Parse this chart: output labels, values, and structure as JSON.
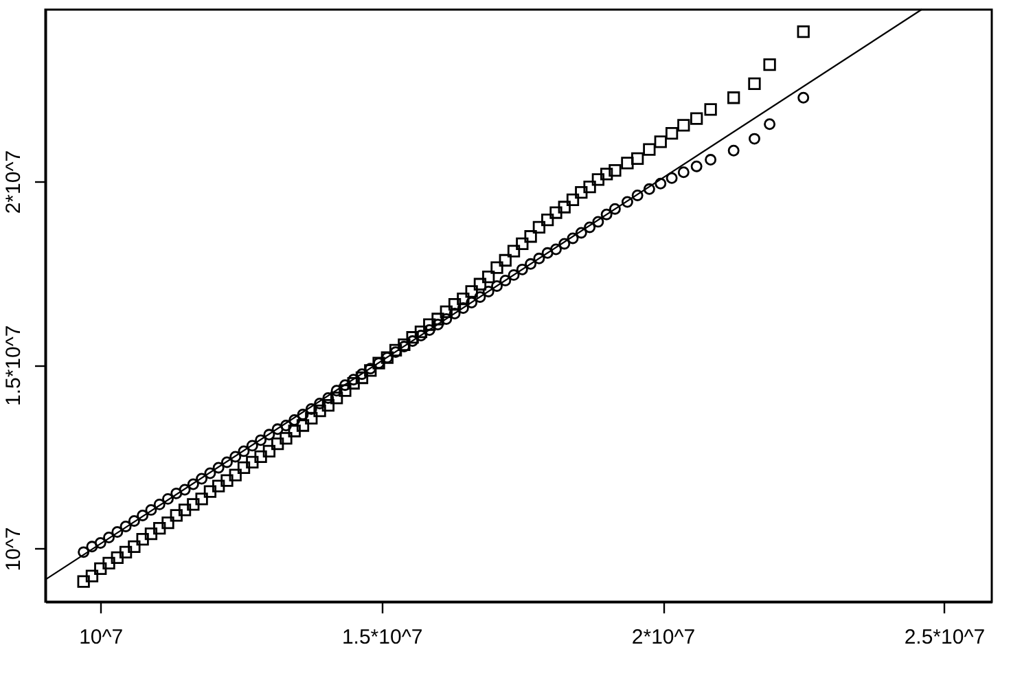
{
  "chart_data": {
    "type": "scatter",
    "x": [
      9700000,
      9850000,
      10000000,
      10150000,
      10300000,
      10450000,
      10600000,
      10750000,
      10900000,
      11050000,
      11200000,
      11350000,
      11500000,
      11650000,
      11800000,
      11950000,
      12100000,
      12250000,
      12400000,
      12550000,
      12700000,
      12850000,
      13000000,
      13150000,
      13300000,
      13450000,
      13600000,
      13750000,
      13900000,
      14050000,
      14200000,
      14350000,
      14500000,
      14650000,
      14800000,
      14950000,
      15100000,
      15250000,
      15400000,
      15550000,
      15700000,
      15850000,
      16000000,
      16150000,
      16300000,
      16450000,
      16600000,
      16750000,
      16900000,
      17050000,
      17200000,
      17350000,
      17500000,
      17650000,
      17800000,
      17950000,
      18100000,
      18250000,
      18400000,
      18550000,
      18700000,
      18850000,
      19000000,
      19150000,
      19370000,
      19550000,
      19760000,
      19960000,
      20160000,
      20370000,
      20600000,
      20850000,
      21260000,
      21630000,
      21900000,
      22500000
    ],
    "series": [
      {
        "color": "#000000",
        "marker": "square",
        "values": [
          9100000,
          9250000,
          9450000,
          9600000,
          9750000,
          9900000,
          10050000,
          10250000,
          10400000,
          10550000,
          10700000,
          10900000,
          11050000,
          11200000,
          11350000,
          11550000,
          11700000,
          11850000,
          12000000,
          12200000,
          12350000,
          12500000,
          12650000,
          12850000,
          13000000,
          13200000,
          13350000,
          13550000,
          13750000,
          13900000,
          14100000,
          14300000,
          14500000,
          14650000,
          14850000,
          15050000,
          15200000,
          15400000,
          15550000,
          15750000,
          15900000,
          16100000,
          16250000,
          16450000,
          16650000,
          16800000,
          17000000,
          17200000,
          17400000,
          17650000,
          17850000,
          18100000,
          18300000,
          18500000,
          18750000,
          18950000,
          19150000,
          19300000,
          19500000,
          19700000,
          19850000,
          20050000,
          20200000,
          20300000,
          20500000,
          20620000,
          20870000,
          21080000,
          21310000,
          21530000,
          21710000,
          21960000,
          22280000,
          22660000,
          23180000,
          24080000
        ]
      },
      {
        "color": "#000000",
        "marker": "circle",
        "values": [
          9900000,
          10050000,
          10150000,
          10300000,
          10450000,
          10600000,
          10750000,
          10900000,
          11050000,
          11200000,
          11350000,
          11500000,
          11600000,
          11750000,
          11900000,
          12050000,
          12200000,
          12350000,
          12500000,
          12650000,
          12800000,
          12950000,
          13100000,
          13250000,
          13350000,
          13500000,
          13650000,
          13800000,
          13950000,
          14100000,
          14300000,
          14450000,
          14600000,
          14750000,
          14900000,
          15050000,
          15200000,
          15350000,
          15500000,
          15650000,
          15800000,
          15950000,
          16100000,
          16250000,
          16400000,
          16550000,
          16700000,
          16850000,
          17000000,
          17150000,
          17300000,
          17450000,
          17600000,
          17750000,
          17900000,
          18050000,
          18150000,
          18300000,
          18450000,
          18600000,
          18750000,
          18900000,
          19100000,
          19250000,
          19440000,
          19620000,
          19790000,
          19940000,
          20090000,
          20250000,
          20410000,
          20590000,
          20840000,
          21160000,
          21560000,
          22280000
        ]
      },
      {
        "type": "line",
        "color": "#000000",
        "line_style": "solid",
        "x": [
          9020000,
          24600000
        ],
        "values": [
          9150000,
          24680000
        ]
      }
    ],
    "xlim": [
      9020000,
      25850000
    ],
    "ylim": [
      8550000,
      24680000
    ],
    "xticks": [
      {
        "value": 10000000,
        "label": "10^7"
      },
      {
        "value": 15000000,
        "label": "1.5*10^7"
      },
      {
        "value": 20000000,
        "label": "2*10^7"
      },
      {
        "value": 25000000,
        "label": "2.5*10^7"
      }
    ],
    "yticks": [
      {
        "value": 10000000,
        "label": "10^7"
      },
      {
        "value": 15000000,
        "label": "1.5*10^7"
      },
      {
        "value": 20000000,
        "label": "2*10^7"
      }
    ],
    "grid": false
  }
}
